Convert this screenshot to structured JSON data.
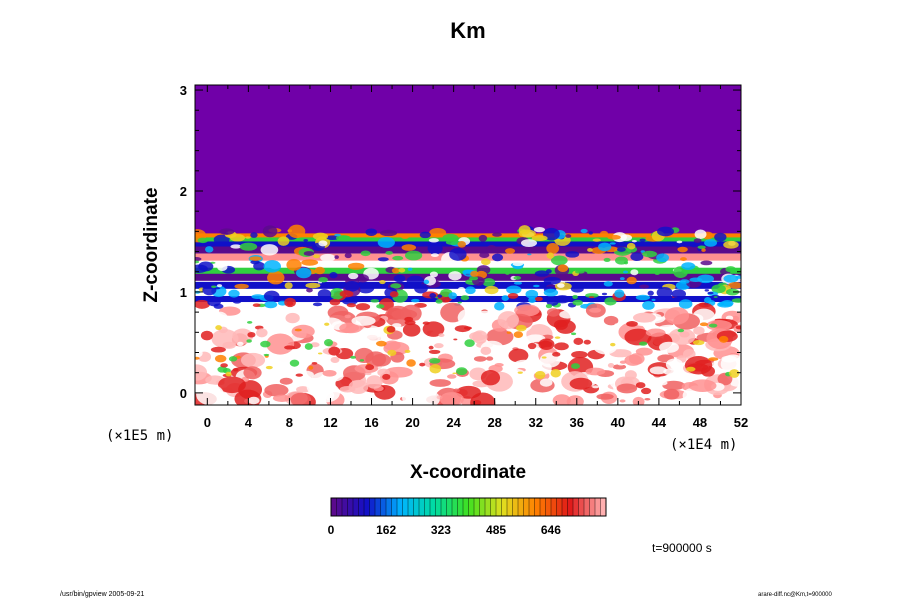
{
  "chart_data": {
    "type": "heatmap",
    "title": "Km",
    "xlabel": "X-coordinate",
    "ylabel": "Z-coordinate",
    "x_unit": "(×1E4 m)",
    "y_unit": "(×1E5 m)",
    "xlim": [
      -1.2,
      52
    ],
    "ylim": [
      -0.12,
      3.05
    ],
    "x_ticks": [
      "0",
      "4",
      "8",
      "12",
      "16",
      "20",
      "24",
      "28",
      "32",
      "36",
      "40",
      "44",
      "48",
      "52"
    ],
    "y_ticks": [
      "0",
      "1",
      "2",
      "3"
    ],
    "colorbar": {
      "range": [
        0,
        808
      ],
      "tick_labels": [
        "0",
        "162",
        "323",
        "485",
        "646"
      ],
      "colors": [
        "#5a0a8c",
        "#1010c8",
        "#00b4ff",
        "#00dca0",
        "#40e020",
        "#e0e020",
        "#ff8000",
        "#e01818",
        "#ffb0b0"
      ]
    },
    "fill_color": "#7000a8",
    "time_label": "t=900000 s",
    "footer_left": "/usr/bin/gpview 2005-09-21",
    "footer_right": "arare-diff.nc@Km,t=900000"
  }
}
